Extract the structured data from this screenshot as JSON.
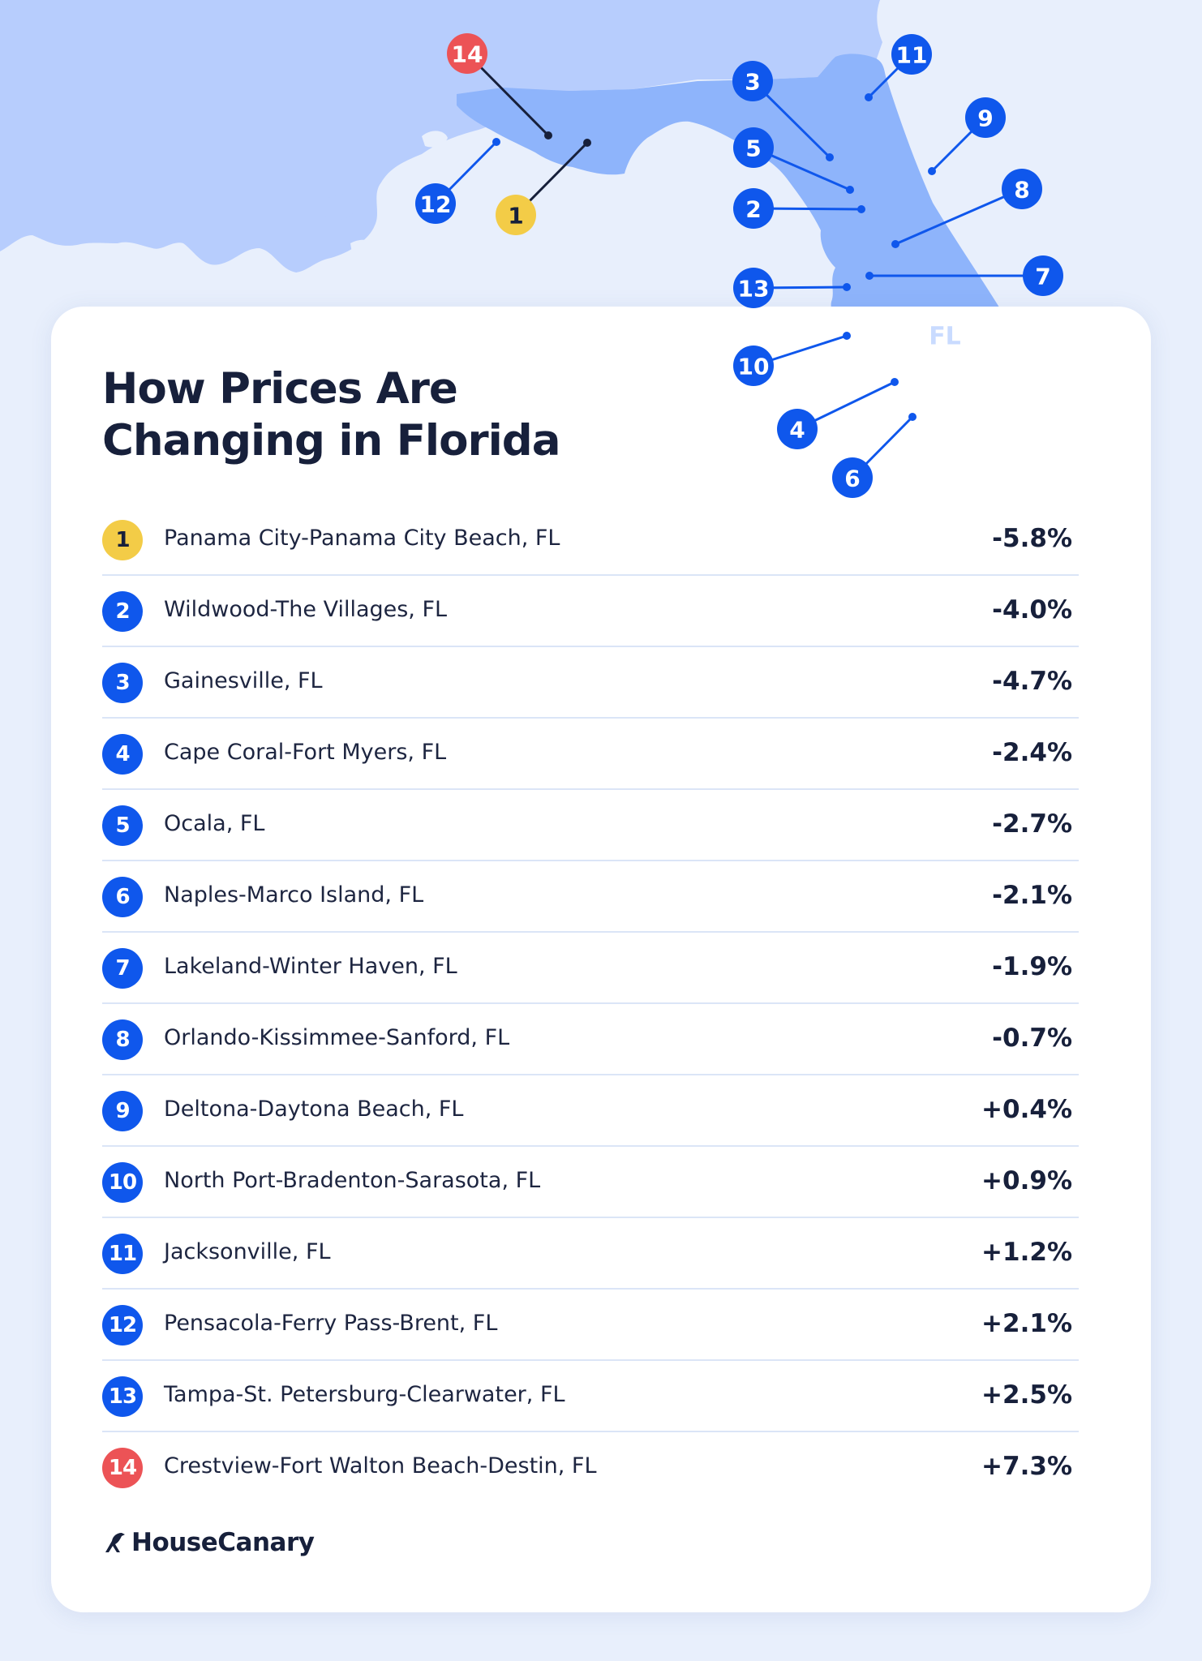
{
  "title_line1": "How Prices Are",
  "title_line2": "Changing in Florida",
  "state_label": "FL",
  "brand": "HouseCanary",
  "colors": {
    "background": "#e8effc",
    "water": "#e8effc",
    "land": "#b7cdfd",
    "florida": "#8eb4fb",
    "badge_default": "#0f57ec",
    "badge_lowest": "#f3cc47",
    "badge_highest": "#ec5356",
    "text_dark": "#17203b",
    "divider": "#dbe5f7"
  },
  "icons": {
    "brand_logo": "canary-bird-icon"
  },
  "legend_note": "",
  "rows": [
    {
      "rank": "1",
      "name": "Panama City-Panama City Beach, FL",
      "value": "-5.8%",
      "change_pct": -5.8,
      "color": "#f3cc47",
      "text_color": "#17203b"
    },
    {
      "rank": "2",
      "name": "Wildwood-The Villages, FL",
      "value": "-4.0%",
      "change_pct": -4.0,
      "color": "#0f57ec",
      "text_color": "#ffffff"
    },
    {
      "rank": "3",
      "name": "Gainesville, FL",
      "value": "-4.7%",
      "change_pct": -4.7,
      "color": "#0f57ec",
      "text_color": "#ffffff"
    },
    {
      "rank": "4",
      "name": "Cape Coral-Fort Myers, FL",
      "value": "-2.4%",
      "change_pct": -2.4,
      "color": "#0f57ec",
      "text_color": "#ffffff"
    },
    {
      "rank": "5",
      "name": "Ocala, FL",
      "value": "-2.7%",
      "change_pct": -2.7,
      "color": "#0f57ec",
      "text_color": "#ffffff"
    },
    {
      "rank": "6",
      "name": "Naples-Marco Island, FL",
      "value": "-2.1%",
      "change_pct": -2.1,
      "color": "#0f57ec",
      "text_color": "#ffffff"
    },
    {
      "rank": "7",
      "name": "Lakeland-Winter Haven, FL",
      "value": "-1.9%",
      "change_pct": -1.9,
      "color": "#0f57ec",
      "text_color": "#ffffff"
    },
    {
      "rank": "8",
      "name": "Orlando-Kissimmee-Sanford, FL",
      "value": "-0.7%",
      "change_pct": -0.7,
      "color": "#0f57ec",
      "text_color": "#ffffff"
    },
    {
      "rank": "9",
      "name": "Deltona-Daytona Beach, FL",
      "value": "+0.4%",
      "change_pct": 0.4,
      "color": "#0f57ec",
      "text_color": "#ffffff"
    },
    {
      "rank": "10",
      "name": "North Port-Bradenton-Sarasota, FL",
      "value": "+0.9%",
      "change_pct": 0.9,
      "color": "#0f57ec",
      "text_color": "#ffffff"
    },
    {
      "rank": "11",
      "name": "Jacksonville, FL",
      "value": "+1.2%",
      "change_pct": 1.2,
      "color": "#0f57ec",
      "text_color": "#ffffff"
    },
    {
      "rank": "12",
      "name": "Pensacola-Ferry Pass-Brent, FL",
      "value": "+2.1%",
      "change_pct": 2.1,
      "color": "#0f57ec",
      "text_color": "#ffffff"
    },
    {
      "rank": "13",
      "name": "Tampa-St. Petersburg-Clearwater, FL",
      "value": "+2.5%",
      "change_pct": 2.5,
      "color": "#0f57ec",
      "text_color": "#ffffff"
    },
    {
      "rank": "14",
      "name": "Crestview-Fort Walton Beach-Destin, FL",
      "value": "+7.3%",
      "change_pct": 7.3,
      "color": "#ec5356",
      "text_color": "#ffffff"
    }
  ]
}
